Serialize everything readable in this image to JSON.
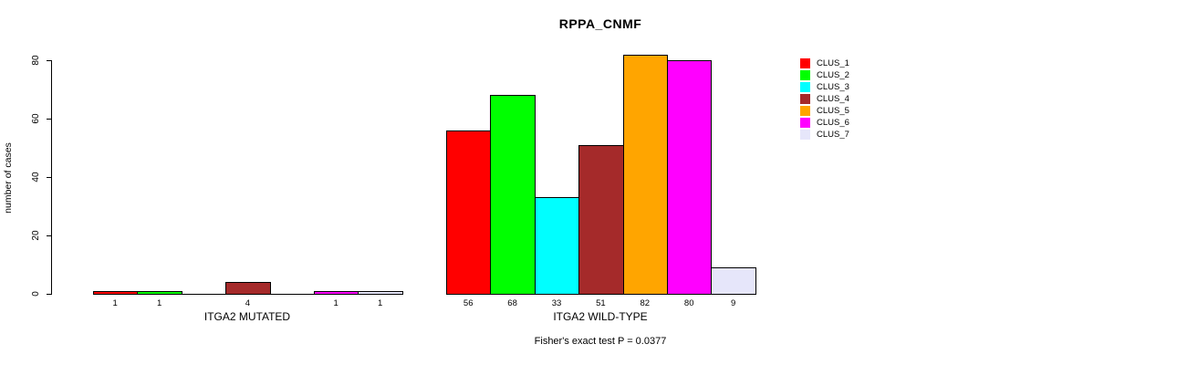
{
  "chart_data": {
    "type": "bar",
    "title": "RPPA_CNMF",
    "ylabel": "number of cases",
    "ylim": [
      0,
      80
    ],
    "yticks": [
      0,
      20,
      40,
      60,
      80
    ],
    "grid": false,
    "legend_position": "right",
    "bar_label_rule": "value shown under each bar only when value > 0",
    "annotation": "Fisher's exact test P = 0.0377",
    "categories": [
      "ITGA2 MUTATED",
      "ITGA2 WILD-TYPE"
    ],
    "series": [
      {
        "name": "CLUS_1",
        "color": "#FF0000",
        "values": [
          1,
          56
        ]
      },
      {
        "name": "CLUS_2",
        "color": "#00FF00",
        "values": [
          1,
          68
        ]
      },
      {
        "name": "CLUS_3",
        "color": "#00FFFF",
        "values": [
          0,
          33
        ]
      },
      {
        "name": "CLUS_4",
        "color": "#A52A2A",
        "values": [
          4,
          51
        ]
      },
      {
        "name": "CLUS_5",
        "color": "#FFA500",
        "values": [
          0,
          82
        ]
      },
      {
        "name": "CLUS_6",
        "color": "#FF00FF",
        "values": [
          1,
          80
        ]
      },
      {
        "name": "CLUS_7",
        "color": "#E6E6FA",
        "values": [
          1,
          9
        ]
      }
    ]
  }
}
